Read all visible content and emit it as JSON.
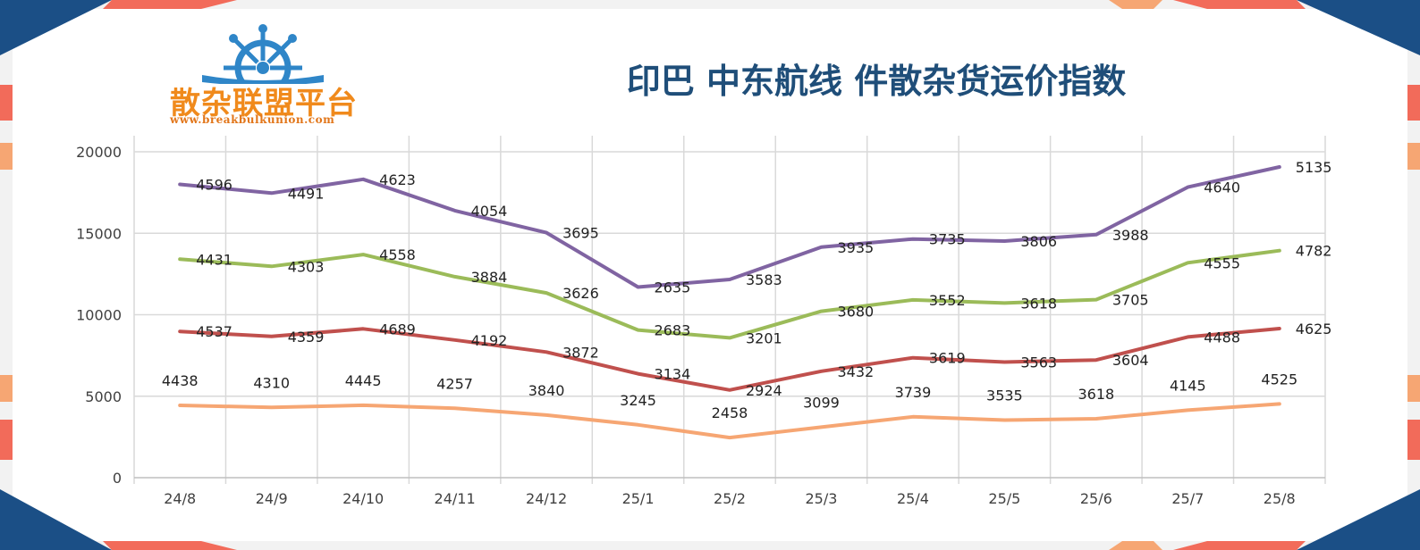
{
  "logo": {
    "name": "散杂联盟平台",
    "url": "www.breakbulkunion.com"
  },
  "colors": {
    "brand_navy": "#1f4e79",
    "frame_navy": "#1b4f86",
    "frame_coral": "#f26b5a",
    "frame_peach": "#f6a673",
    "logo_blue": "#2f86c8",
    "logo_orange": "#f08a1c"
  },
  "chart_data": {
    "type": "line",
    "title": "印巴 中东航线 件散杂货运价指数",
    "categories": [
      "24/8",
      "24/9",
      "24/10",
      "24/11",
      "24/12",
      "25/1",
      "25/2",
      "25/3",
      "25/4",
      "25/5",
      "25/6",
      "25/7",
      "25/8"
    ],
    "stacked": true,
    "ylim": [
      0,
      20000
    ],
    "yticks": [
      "0",
      "5000",
      "10000",
      "15000",
      "20000"
    ],
    "grid": true,
    "legend": "none",
    "series": [
      {
        "color": "#f6a673",
        "values": [
          4438,
          4310,
          4445,
          4257,
          3840,
          3245,
          2458,
          3099,
          3739,
          3535,
          3618,
          4145,
          4525
        ]
      },
      {
        "color": "#c0504d",
        "values": [
          4537,
          4359,
          4689,
          4192,
          3872,
          3134,
          2924,
          3432,
          3619,
          3563,
          3604,
          4488,
          4625
        ]
      },
      {
        "color": "#9bbb59",
        "values": [
          4431,
          4303,
          4558,
          3884,
          3626,
          2683,
          3201,
          3680,
          3552,
          3618,
          3705,
          4555,
          4782
        ]
      },
      {
        "color": "#8064a2",
        "values": [
          4596,
          4491,
          4623,
          4054,
          3695,
          2635,
          3583,
          3935,
          3735,
          3806,
          3988,
          4640,
          5135
        ]
      }
    ]
  }
}
